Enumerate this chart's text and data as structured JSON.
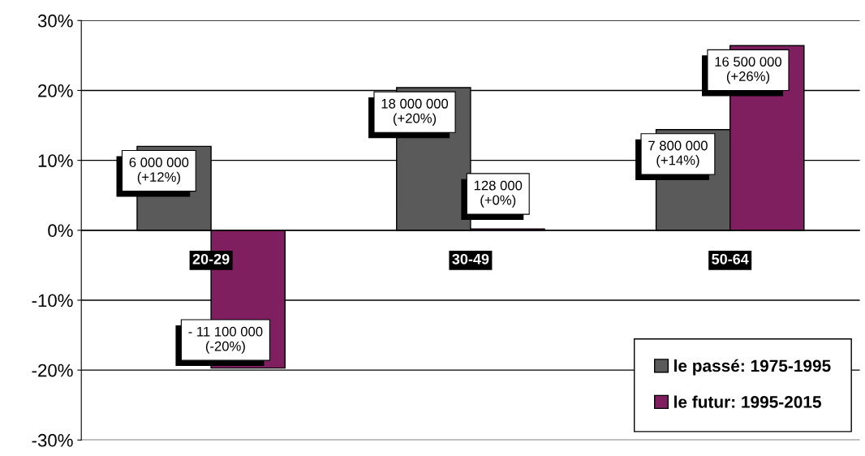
{
  "chart_data": {
    "type": "bar",
    "categories": [
      "20-29",
      "30-49",
      "50-64"
    ],
    "series": [
      {
        "name": "le passé: 1975-1995",
        "color": "#5a5a5a",
        "values": [
          12,
          20.4,
          14.4
        ],
        "value_labels": [
          "6 000 000\n(+12%)",
          "18 000 000\n(+20%)",
          "7 800 000\n(+14%)"
        ]
      },
      {
        "name": "le futur: 1995-2015",
        "color": "#7f1f5f",
        "values": [
          -19.7,
          0.2,
          26.4
        ],
        "value_labels": [
          "- 11 100 000\n(-20%)",
          "128 000\n(+0%)",
          "16 500 000\n(+26%)"
        ]
      }
    ],
    "ylim": [
      -30,
      30
    ],
    "yticks": [
      {
        "value": -30,
        "label": "-30%"
      },
      {
        "value": -20,
        "label": "-20%"
      },
      {
        "value": -10,
        "label": "-10%"
      },
      {
        "value": 0,
        "label": "0%"
      },
      {
        "value": 10,
        "label": "10%"
      },
      {
        "value": 20,
        "label": "20%"
      },
      {
        "value": 30,
        "label": "30%"
      }
    ],
    "grid": "y",
    "legend": "bottom right"
  }
}
